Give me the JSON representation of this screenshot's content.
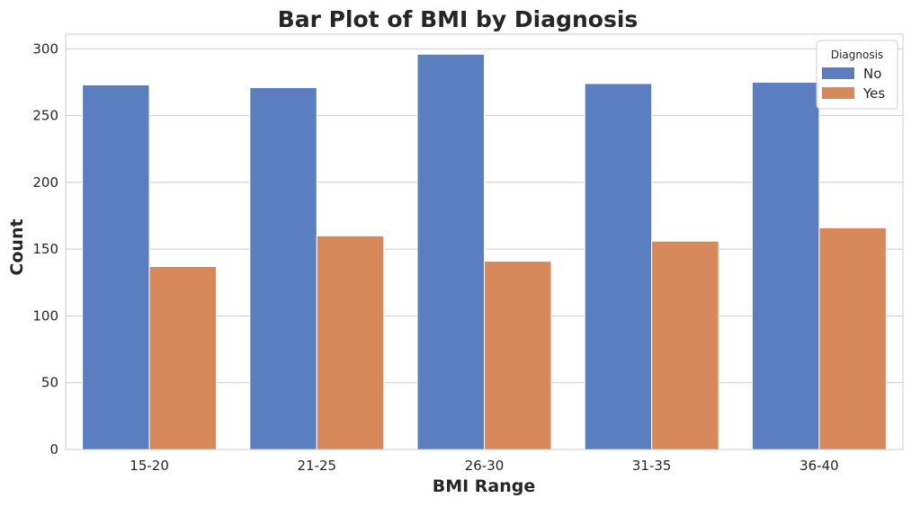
{
  "chart_data": {
    "type": "bar",
    "title": "Bar Plot of BMI by Diagnosis",
    "xlabel": "BMI Range",
    "ylabel": "Count",
    "categories": [
      "15-20",
      "21-25",
      "26-30",
      "31-35",
      "36-40"
    ],
    "series": [
      {
        "name": "No",
        "color": "#5a7ec0",
        "values": [
          273,
          271,
          296,
          274,
          275
        ]
      },
      {
        "name": "Yes",
        "color": "#d8895c",
        "values": [
          137,
          160,
          141,
          156,
          166
        ]
      }
    ],
    "ylim": [
      0,
      311
    ],
    "yticks": [
      0,
      50,
      100,
      150,
      200,
      250,
      300
    ],
    "grid": true,
    "legend": {
      "title": "Diagnosis",
      "placement": "top-right"
    }
  }
}
